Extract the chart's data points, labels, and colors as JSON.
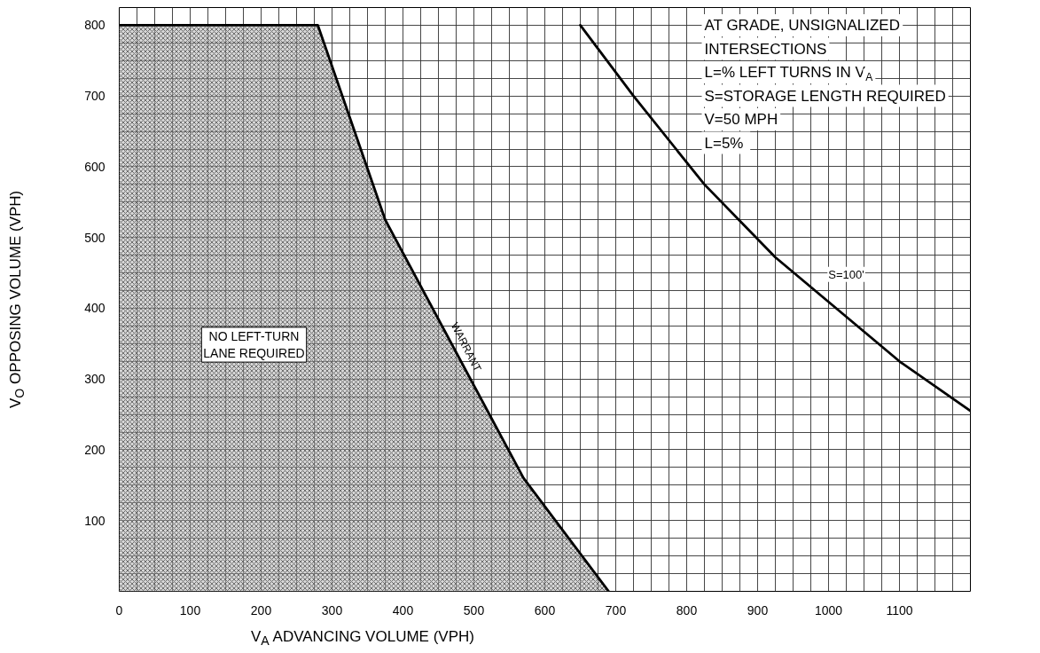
{
  "chart_data": {
    "type": "line",
    "xlabel": "V$_{A}$ ADVANCING VOLUME (VPH)",
    "ylabel": "V$_{O}$ OPPOSING VOLUME (VPH)",
    "xlim": [
      0,
      1200
    ],
    "ylim": [
      0,
      825
    ],
    "xticks": [
      0,
      {
        "value": 25,
        "label": null
      },
      {
        "value": 50,
        "label": null
      },
      {
        "value": 75,
        "label": null
      },
      100,
      {
        "value": 125,
        "label": null
      },
      {
        "value": 150,
        "label": null
      },
      {
        "value": 175,
        "label": null
      },
      200,
      {
        "value": 225,
        "label": null
      },
      {
        "value": 250,
        "label": null
      },
      {
        "value": 275,
        "label": null
      },
      300,
      {
        "value": 325,
        "label": null
      },
      {
        "value": 350,
        "label": null
      },
      {
        "value": 375,
        "label": null
      },
      400,
      {
        "value": 425,
        "label": null
      },
      {
        "value": 450,
        "label": null
      },
      {
        "value": 475,
        "label": null
      },
      500,
      {
        "value": 525,
        "label": null
      },
      {
        "value": 550,
        "label": null
      },
      {
        "value": 575,
        "label": null
      },
      600,
      {
        "value": 625,
        "label": null
      },
      {
        "value": 650,
        "label": null
      },
      {
        "value": 675,
        "label": null
      },
      700,
      {
        "value": 725,
        "label": null
      },
      {
        "value": 750,
        "label": null
      },
      {
        "value": 775,
        "label": null
      },
      800,
      {
        "value": 825,
        "label": null
      },
      {
        "value": 850,
        "label": null
      },
      {
        "value": 875,
        "label": null
      },
      900,
      {
        "value": 925,
        "label": null
      },
      {
        "value": 950,
        "label": null
      },
      {
        "value": 975,
        "label": null
      },
      1000,
      {
        "value": 1025,
        "label": null
      },
      {
        "value": 1050,
        "label": null
      },
      {
        "value": 1075,
        "label": null
      },
      1100,
      {
        "value": 1125,
        "label": null
      },
      {
        "value": 1150,
        "label": null
      },
      {
        "value": 1175,
        "label": null
      },
      {
        "value": 1200,
        "label": null
      }
    ],
    "yticks": [
      {
        "value": 0,
        "label": null
      },
      {
        "value": 25,
        "label": null
      },
      {
        "value": 50,
        "label": null
      },
      {
        "value": 75,
        "label": null
      },
      100,
      {
        "value": 125,
        "label": null
      },
      {
        "value": 150,
        "label": null
      },
      {
        "value": 175,
        "label": null
      },
      200,
      {
        "value": 225,
        "label": null
      },
      {
        "value": 250,
        "label": null
      },
      {
        "value": 275,
        "label": null
      },
      300,
      {
        "value": 325,
        "label": null
      },
      {
        "value": 350,
        "label": null
      },
      {
        "value": 375,
        "label": null
      },
      400,
      {
        "value": 425,
        "label": null
      },
      {
        "value": 450,
        "label": null
      },
      {
        "value": 475,
        "label": null
      },
      500,
      {
        "value": 525,
        "label": null
      },
      {
        "value": 550,
        "label": null
      },
      {
        "value": 575,
        "label": null
      },
      600,
      {
        "value": 625,
        "label": null
      },
      {
        "value": 650,
        "label": null
      },
      {
        "value": 675,
        "label": null
      },
      700,
      {
        "value": 725,
        "label": null
      },
      {
        "value": 750,
        "label": null
      },
      {
        "value": 775,
        "label": null
      },
      800,
      {
        "value": 825,
        "label": null
      }
    ],
    "grid": true,
    "series": [
      {
        "type": "area",
        "color": "#b4b4b4",
        "x": [
          0,
          280,
          375,
          570,
          690
        ],
        "values": [
          800,
          800,
          525,
          160,
          0
        ]
      },
      {
        "color": "#000000",
        "x": [
          650,
          725,
          825,
          925,
          1025,
          1100,
          1200
        ],
        "values": [
          800,
          700,
          575,
          472,
          388,
          325,
          255
        ]
      }
    ],
    "annotations": [
      "AT GRADE, UNSIGNALIZED\nINTERSECTIONS\nL=% LEFT TURNS IN V$_{A}$\nS=STORAGE LENGTH REQUIRED\nV=50 MPH\n L=5%",
      "NO LEFT-TURN\nLANE REQUIRED",
      {
        "text": "WARRANT",
        "x": 479,
        "y": 340
      },
      {
        "text": "S=100'",
        "x": 1025,
        "y": 448
      }
    ]
  }
}
